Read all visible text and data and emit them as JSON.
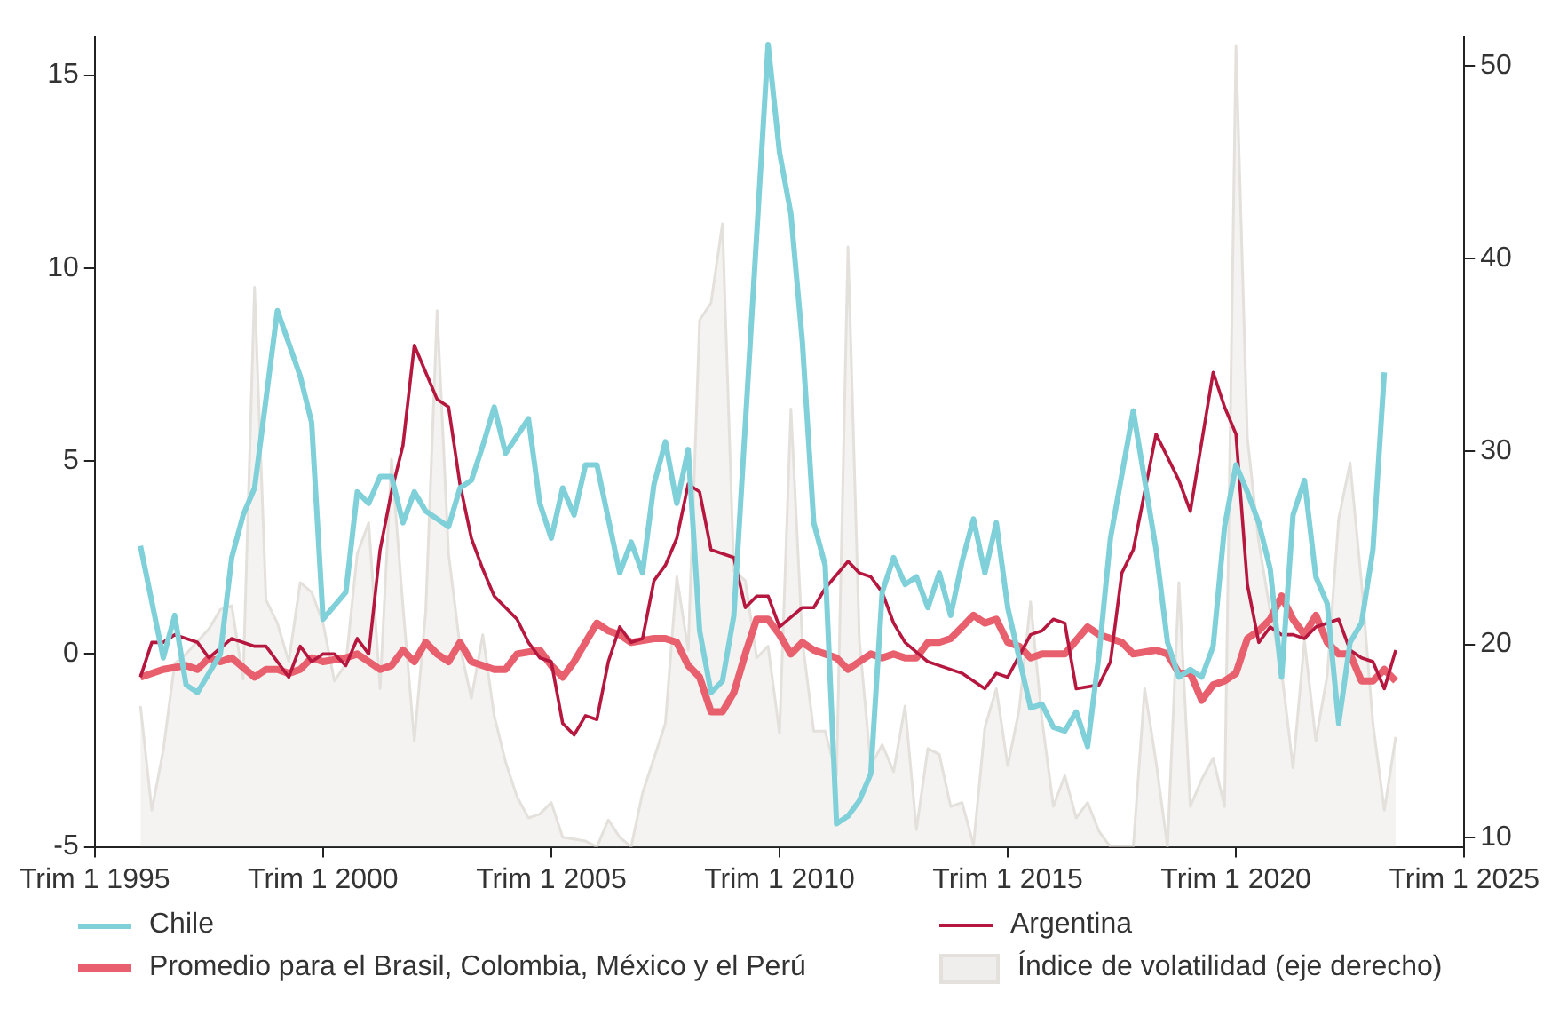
{
  "chart_data": {
    "type": "line",
    "legend": "bottom",
    "categories": [
      "Trim 1 1995",
      null,
      null,
      null,
      null,
      null,
      null,
      null,
      null,
      null,
      null,
      null,
      null,
      null,
      null,
      null,
      null,
      null,
      null,
      null,
      "Trim 1 2000",
      null,
      null,
      null,
      null,
      null,
      null,
      null,
      null,
      null,
      null,
      null,
      null,
      null,
      null,
      null,
      null,
      null,
      null,
      null,
      "Trim 1 2005",
      null,
      null,
      null,
      null,
      null,
      null,
      null,
      null,
      null,
      null,
      null,
      null,
      null,
      null,
      null,
      null,
      null,
      null,
      null,
      "Trim 1 2010",
      null,
      null,
      null,
      null,
      null,
      null,
      null,
      null,
      null,
      null,
      null,
      null,
      null,
      null,
      null,
      null,
      null,
      null,
      null,
      "Trim 1 2015",
      null,
      null,
      null,
      null,
      null,
      null,
      null,
      null,
      null,
      null,
      null,
      null,
      null,
      null,
      null,
      null,
      null,
      null,
      null,
      "Trim 1 2020",
      null,
      null,
      null,
      null,
      null,
      null,
      null,
      null,
      null,
      null,
      null,
      null,
      null,
      null,
      null,
      null,
      null,
      null,
      null,
      "Trim 1 2025"
    ],
    "ylim": [
      -5,
      16
    ],
    "yticks": [
      -5,
      0,
      5,
      10,
      15
    ],
    "y2lim": [
      9.5,
      51.5
    ],
    "y2ticks": [
      10,
      20,
      30,
      40,
      50
    ],
    "series": [
      {
        "name": "Chile",
        "color": "#7fd0d8",
        "values": [
          null,
          null,
          null,
          null,
          2.8,
          null,
          -0.1,
          1.0,
          -0.8,
          -1.0,
          null,
          0,
          2.5,
          3.6,
          4.3,
          null,
          8.9,
          null,
          7.2,
          6.0,
          0.9,
          null,
          1.6,
          4.2,
          3.9,
          4.6,
          4.6,
          3.4,
          4.2,
          3.7,
          null,
          3.3,
          4.3,
          4.5,
          5.4,
          6.4,
          5.2,
          null,
          6.1,
          3.9,
          3.0,
          4.3,
          3.6,
          4.9,
          4.9,
          null,
          2.1,
          2.9,
          2.1,
          4.4,
          5.5,
          3.9,
          5.3,
          0.6,
          -1.0,
          -0.7,
          1.0,
          null,
          null,
          15.8,
          13.0,
          11.4,
          8.1,
          3.4,
          2.3,
          -4.4,
          -4.2,
          -3.8,
          -3.1,
          1.6,
          2.5,
          1.8,
          2.0,
          1.2,
          2.1,
          1.0,
          2.4,
          3.5,
          2.1,
          3.4,
          1.2,
          null,
          -1.4,
          -1.3,
          -1.9,
          -2.0,
          -1.5,
          -2.4,
          0,
          3.0,
          null,
          6.3,
          4.5,
          2.7,
          0.3,
          -0.6,
          -0.4,
          -0.6,
          0.2,
          3.3,
          4.9,
          4.2,
          3.4,
          2.2,
          -0.6,
          3.6,
          4.5,
          2.0,
          1.3,
          -1.8,
          0.3,
          0.8,
          2.7,
          7.3,
          null,
          null,
          null,
          null,
          null,
          null,
          null
        ]
      },
      {
        "name": "Argentina",
        "color": "#b5173e",
        "values": [
          null,
          null,
          null,
          null,
          -0.6,
          0.3,
          0.3,
          0.5,
          null,
          0.3,
          -0.1,
          null,
          0.4,
          null,
          0.2,
          0.2,
          -0.2,
          -0.6,
          0.2,
          -0.2,
          0,
          0,
          -0.3,
          0.4,
          0,
          2.7,
          4.2,
          5.4,
          8.0,
          7.3,
          6.6,
          6.4,
          4.4,
          3.0,
          2.2,
          1.5,
          1.2,
          0.9,
          0.3,
          -0.1,
          -0.2,
          -1.8,
          -2.1,
          -1.6,
          -1.7,
          -0.2,
          0.7,
          0.3,
          0.4,
          1.9,
          2.3,
          3.0,
          4.4,
          4.2,
          2.7,
          null,
          2.5,
          1.2,
          1.5,
          1.5,
          0.7,
          null,
          1.2,
          1.2,
          1.7,
          null,
          2.4,
          2.1,
          2.0,
          1.6,
          0.8,
          0.3,
          null,
          -0.2,
          -0.3,
          null,
          -0.5,
          -0.7,
          -0.9,
          -0.5,
          -0.6,
          null,
          0.5,
          0.6,
          0.9,
          0.8,
          -0.9,
          null,
          -0.8,
          -0.2,
          2.1,
          2.7,
          4.2,
          5.7,
          5.1,
          4.5,
          3.7,
          null,
          7.3,
          6.4,
          5.7,
          1.8,
          0.3,
          0.7,
          0.5,
          0.5,
          0.4,
          0.7,
          null,
          0.9,
          0.1,
          -0.1,
          -0.2,
          -0.9,
          0.1,
          null,
          null,
          null,
          null,
          null,
          null
        ]
      },
      {
        "name": "Promedio para el Brasil, Colombia, México y el Perú",
        "color": "#e8606e",
        "values": [
          null,
          null,
          null,
          null,
          -0.6,
          null,
          -0.4,
          null,
          -0.3,
          -0.4,
          -0.1,
          -0.2,
          -0.1,
          null,
          -0.6,
          -0.4,
          -0.4,
          -0.5,
          -0.4,
          -0.1,
          -0.2,
          null,
          -0.1,
          0,
          -0.2,
          -0.4,
          -0.3,
          0.1,
          -0.2,
          0.3,
          0,
          -0.2,
          0.3,
          -0.2,
          null,
          -0.4,
          -0.4,
          0,
          null,
          0.1,
          -0.3,
          -0.6,
          -0.2,
          0.3,
          0.8,
          0.6,
          0.5,
          0.3,
          null,
          0.4,
          0.4,
          0.3,
          -0.3,
          -0.6,
          -1.5,
          -1.5,
          -1.0,
          0,
          0.9,
          0.9,
          0.5,
          0,
          0.3,
          0.1,
          0,
          -0.1,
          -0.4,
          -0.2,
          0,
          -0.1,
          0,
          -0.1,
          -0.1,
          0.3,
          0.3,
          0.4,
          0.7,
          1.0,
          0.8,
          0.9,
          0.3,
          0.2,
          -0.1,
          0,
          0,
          0,
          null,
          0.7,
          0.5,
          null,
          0.3,
          0,
          null,
          0.1,
          0,
          -0.5,
          -0.5,
          -1.2,
          -0.8,
          -0.7,
          -0.5,
          0.4,
          0.6,
          0.9,
          1.5,
          0.9,
          0.5,
          1.0,
          0.3,
          0,
          0,
          -0.7,
          -0.7,
          -0.4,
          -0.7,
          null,
          null,
          null,
          null,
          null,
          null
        ]
      },
      {
        "name": "Índice de volatilidad (eje derecho)",
        "type": "area",
        "axis": "y2",
        "color": "#e4e0dc",
        "values": [
          null,
          null,
          null,
          null,
          16.8,
          11.4,
          14.5,
          19.0,
          19.5,
          null,
          20.8,
          21.8,
          22.0,
          18.2,
          38.5,
          22.3,
          21.1,
          19.1,
          23.2,
          22.7,
          21.1,
          18.1,
          19.0,
          24.7,
          26.3,
          17.7,
          29.6,
          22.0,
          15.0,
          21.7,
          37.3,
          24.7,
          19.9,
          17.2,
          20.5,
          16.3,
          13.9,
          12.1,
          11.0,
          11.2,
          11.8,
          10.0,
          null,
          9.8,
          9.5,
          10.9,
          10.0,
          9.5,
          12.3,
          14.1,
          15.9,
          23.5,
          19.7,
          36.8,
          37.7,
          41.8,
          23.8,
          23.3,
          19.3,
          19.9,
          15.4,
          32.2,
          20.2,
          15.5,
          15.5,
          13.2,
          40.6,
          20.2,
          13.7,
          14.8,
          13.4,
          16.8,
          10.4,
          14.6,
          14.3,
          11.6,
          11.8,
          9.6,
          15.7,
          17.7,
          13.7,
          16.6,
          22.2,
          16.1,
          11.6,
          13.2,
          11.0,
          11.8,
          10.3,
          9.5,
          9.5,
          9.5,
          17.7,
          13.9,
          9.5,
          23.2,
          11.6,
          13.0,
          14.1,
          11.6,
          51.0,
          30.7,
          25.3,
          21.7,
          18.6,
          13.6,
          20.2,
          15.0,
          18.4,
          26.5,
          29.4,
          23.2,
          15.9,
          11.4,
          15.2,
          null,
          null,
          null,
          null,
          null,
          null
        ]
      }
    ]
  }
}
